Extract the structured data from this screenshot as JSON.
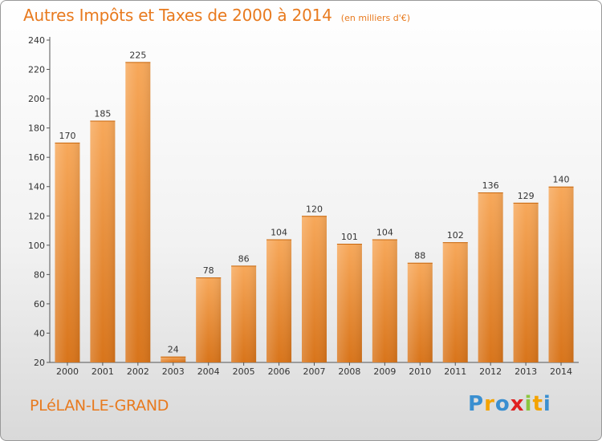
{
  "header": {
    "title": "Autres Impôts et Taxes de 2000 à 2014",
    "subtitle": "(en milliers d'€)"
  },
  "footer": {
    "commune": "PLéLAN-LE-GRAND",
    "logo_letters": [
      {
        "char": "P",
        "color": "#3a8fd0"
      },
      {
        "char": "r",
        "color": "#f4a300"
      },
      {
        "char": "o",
        "color": "#3a8fd0"
      },
      {
        "char": "x",
        "color": "#e02020"
      },
      {
        "char": "i",
        "color": "#8cc63f"
      },
      {
        "char": "t",
        "color": "#f4a300"
      },
      {
        "char": "i",
        "color": "#3a8fd0"
      }
    ]
  },
  "chart_data": {
    "type": "bar",
    "title": "Autres Impôts et Taxes de 2000 à 2014",
    "subtitle": "(en milliers d'€)",
    "xlabel": "",
    "ylabel": "",
    "categories": [
      "2000",
      "2001",
      "2002",
      "2003",
      "2004",
      "2005",
      "2006",
      "2007",
      "2008",
      "2009",
      "2010",
      "2011",
      "2012",
      "2013",
      "2014"
    ],
    "values": [
      170,
      185,
      225,
      24,
      78,
      86,
      104,
      120,
      101,
      104,
      88,
      102,
      136,
      129,
      140
    ],
    "ylim": [
      20,
      240
    ],
    "yticks": [
      20,
      40,
      60,
      80,
      100,
      120,
      140,
      160,
      180,
      200,
      220,
      240
    ],
    "grid": false,
    "bar_color_top": "#f7a85a",
    "bar_color_bottom": "#d8741a"
  }
}
